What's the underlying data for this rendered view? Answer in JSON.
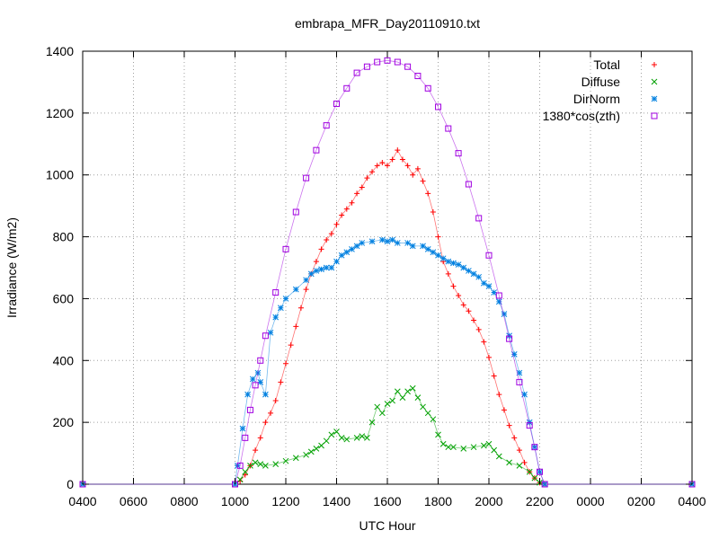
{
  "chart_data": {
    "type": "scatter",
    "title": "embrapa_MFR_Day20110910.txt",
    "xlabel": "UTC Hour",
    "ylabel": "Irradiance (W/m2)",
    "xlim": [
      4,
      28
    ],
    "ylim": [
      0,
      1400
    ],
    "x_ticks": [
      4,
      6,
      8,
      10,
      12,
      14,
      16,
      18,
      20,
      22,
      24,
      26,
      28
    ],
    "x_tick_labels": [
      "0400",
      "0600",
      "0800",
      "1000",
      "1200",
      "1400",
      "1600",
      "1800",
      "2000",
      "2200",
      "0000",
      "0200",
      "0400"
    ],
    "y_ticks": [
      0,
      200,
      400,
      600,
      800,
      1000,
      1200,
      1400
    ],
    "y_tick_labels": [
      "0",
      "200",
      "400",
      "600",
      "800",
      "1000",
      "1200",
      "1400"
    ],
    "grid": true,
    "legend_position": "top-right",
    "series": [
      {
        "name": "Total",
        "marker": "plus",
        "color": "#ff0000",
        "points": [
          [
            4,
            0
          ],
          [
            10,
            0
          ],
          [
            10.2,
            10
          ],
          [
            10.4,
            30
          ],
          [
            10.6,
            60
          ],
          [
            10.8,
            110
          ],
          [
            11.0,
            150
          ],
          [
            11.2,
            200
          ],
          [
            11.4,
            230
          ],
          [
            11.6,
            270
          ],
          [
            11.8,
            330
          ],
          [
            12.0,
            390
          ],
          [
            12.2,
            450
          ],
          [
            12.4,
            510
          ],
          [
            12.6,
            570
          ],
          [
            12.8,
            630
          ],
          [
            13.0,
            680
          ],
          [
            13.2,
            720
          ],
          [
            13.4,
            760
          ],
          [
            13.6,
            790
          ],
          [
            13.8,
            810
          ],
          [
            14.0,
            840
          ],
          [
            14.2,
            870
          ],
          [
            14.4,
            890
          ],
          [
            14.6,
            910
          ],
          [
            14.8,
            940
          ],
          [
            15.0,
            960
          ],
          [
            15.2,
            990
          ],
          [
            15.4,
            1010
          ],
          [
            15.6,
            1030
          ],
          [
            15.8,
            1040
          ],
          [
            16.0,
            1030
          ],
          [
            16.2,
            1050
          ],
          [
            16.4,
            1080
          ],
          [
            16.6,
            1050
          ],
          [
            16.8,
            1030
          ],
          [
            17.0,
            1000
          ],
          [
            17.2,
            1020
          ],
          [
            17.4,
            980
          ],
          [
            17.6,
            940
          ],
          [
            17.8,
            880
          ],
          [
            18.0,
            800
          ],
          [
            18.2,
            720
          ],
          [
            18.4,
            680
          ],
          [
            18.6,
            640
          ],
          [
            18.8,
            610
          ],
          [
            19.0,
            580
          ],
          [
            19.2,
            560
          ],
          [
            19.4,
            530
          ],
          [
            19.6,
            500
          ],
          [
            19.8,
            460
          ],
          [
            20.0,
            410
          ],
          [
            20.2,
            350
          ],
          [
            20.4,
            290
          ],
          [
            20.6,
            240
          ],
          [
            20.8,
            190
          ],
          [
            21.0,
            150
          ],
          [
            21.2,
            110
          ],
          [
            21.4,
            70
          ],
          [
            21.6,
            40
          ],
          [
            21.8,
            20
          ],
          [
            22.0,
            5
          ],
          [
            22.2,
            0
          ],
          [
            28,
            0
          ]
        ]
      },
      {
        "name": "Diffuse",
        "marker": "cross",
        "color": "#00a000",
        "points": [
          [
            4,
            0
          ],
          [
            10,
            0
          ],
          [
            10.2,
            15
          ],
          [
            10.4,
            40
          ],
          [
            10.6,
            60
          ],
          [
            10.8,
            70
          ],
          [
            11.0,
            65
          ],
          [
            11.2,
            60
          ],
          [
            11.6,
            65
          ],
          [
            12.0,
            75
          ],
          [
            12.4,
            85
          ],
          [
            12.8,
            95
          ],
          [
            13.0,
            105
          ],
          [
            13.2,
            115
          ],
          [
            13.4,
            125
          ],
          [
            13.6,
            140
          ],
          [
            13.8,
            160
          ],
          [
            14.0,
            170
          ],
          [
            14.2,
            150
          ],
          [
            14.4,
            145
          ],
          [
            14.8,
            150
          ],
          [
            15.0,
            155
          ],
          [
            15.2,
            150
          ],
          [
            15.4,
            200
          ],
          [
            15.6,
            250
          ],
          [
            15.8,
            230
          ],
          [
            16.0,
            260
          ],
          [
            16.2,
            270
          ],
          [
            16.4,
            300
          ],
          [
            16.6,
            280
          ],
          [
            16.8,
            300
          ],
          [
            17.0,
            310
          ],
          [
            17.2,
            280
          ],
          [
            17.4,
            250
          ],
          [
            17.6,
            230
          ],
          [
            17.8,
            210
          ],
          [
            18.0,
            160
          ],
          [
            18.2,
            130
          ],
          [
            18.4,
            120
          ],
          [
            18.6,
            120
          ],
          [
            19.0,
            115
          ],
          [
            19.4,
            120
          ],
          [
            19.8,
            125
          ],
          [
            20.0,
            130
          ],
          [
            20.2,
            110
          ],
          [
            20.4,
            90
          ],
          [
            20.8,
            70
          ],
          [
            21.2,
            60
          ],
          [
            21.6,
            40
          ],
          [
            21.8,
            20
          ],
          [
            22.0,
            5
          ],
          [
            22.2,
            0
          ],
          [
            28,
            0
          ]
        ]
      },
      {
        "name": "DirNorm",
        "marker": "star",
        "color": "#0080e0",
        "points": [
          [
            4,
            0
          ],
          [
            10,
            0
          ],
          [
            10.1,
            60
          ],
          [
            10.3,
            180
          ],
          [
            10.5,
            290
          ],
          [
            10.7,
            340
          ],
          [
            10.9,
            360
          ],
          [
            11.0,
            330
          ],
          [
            11.2,
            290
          ],
          [
            11.4,
            490
          ],
          [
            11.6,
            540
          ],
          [
            11.8,
            570
          ],
          [
            12.0,
            600
          ],
          [
            12.4,
            630
          ],
          [
            12.8,
            660
          ],
          [
            13.0,
            680
          ],
          [
            13.2,
            690
          ],
          [
            13.4,
            695
          ],
          [
            13.6,
            700
          ],
          [
            13.8,
            700
          ],
          [
            14.0,
            720
          ],
          [
            14.2,
            740
          ],
          [
            14.4,
            750
          ],
          [
            14.6,
            760
          ],
          [
            14.8,
            770
          ],
          [
            15.0,
            780
          ],
          [
            15.4,
            785
          ],
          [
            15.8,
            790
          ],
          [
            16.0,
            785
          ],
          [
            16.2,
            790
          ],
          [
            16.4,
            780
          ],
          [
            16.8,
            780
          ],
          [
            17.0,
            770
          ],
          [
            17.4,
            770
          ],
          [
            17.6,
            760
          ],
          [
            17.8,
            750
          ],
          [
            18.0,
            740
          ],
          [
            18.2,
            730
          ],
          [
            18.4,
            720
          ],
          [
            18.6,
            715
          ],
          [
            18.8,
            710
          ],
          [
            19.0,
            700
          ],
          [
            19.2,
            690
          ],
          [
            19.4,
            680
          ],
          [
            19.6,
            670
          ],
          [
            19.8,
            650
          ],
          [
            20.0,
            640
          ],
          [
            20.2,
            620
          ],
          [
            20.4,
            590
          ],
          [
            20.6,
            550
          ],
          [
            20.8,
            480
          ],
          [
            21.0,
            420
          ],
          [
            21.2,
            360
          ],
          [
            21.4,
            290
          ],
          [
            21.6,
            200
          ],
          [
            21.8,
            120
          ],
          [
            22.0,
            40
          ],
          [
            22.2,
            0
          ],
          [
            28,
            0
          ]
        ]
      },
      {
        "name": "1380*cos(zth)",
        "marker": "square",
        "color": "#a000e0",
        "points": [
          [
            4,
            0
          ],
          [
            10,
            0
          ],
          [
            10.2,
            60
          ],
          [
            10.4,
            150
          ],
          [
            10.6,
            240
          ],
          [
            10.8,
            320
          ],
          [
            11.0,
            400
          ],
          [
            11.2,
            480
          ],
          [
            11.6,
            620
          ],
          [
            12.0,
            760
          ],
          [
            12.4,
            880
          ],
          [
            12.8,
            990
          ],
          [
            13.2,
            1080
          ],
          [
            13.6,
            1160
          ],
          [
            14.0,
            1230
          ],
          [
            14.4,
            1280
          ],
          [
            14.8,
            1330
          ],
          [
            15.2,
            1350
          ],
          [
            15.6,
            1365
          ],
          [
            16.0,
            1370
          ],
          [
            16.4,
            1365
          ],
          [
            16.8,
            1350
          ],
          [
            17.2,
            1320
          ],
          [
            17.6,
            1280
          ],
          [
            18.0,
            1220
          ],
          [
            18.4,
            1150
          ],
          [
            18.8,
            1070
          ],
          [
            19.2,
            970
          ],
          [
            19.6,
            860
          ],
          [
            20.0,
            740
          ],
          [
            20.4,
            610
          ],
          [
            20.8,
            470
          ],
          [
            21.2,
            330
          ],
          [
            21.6,
            190
          ],
          [
            21.8,
            120
          ],
          [
            22.0,
            40
          ],
          [
            22.2,
            0
          ],
          [
            28,
            0
          ]
        ]
      }
    ]
  }
}
